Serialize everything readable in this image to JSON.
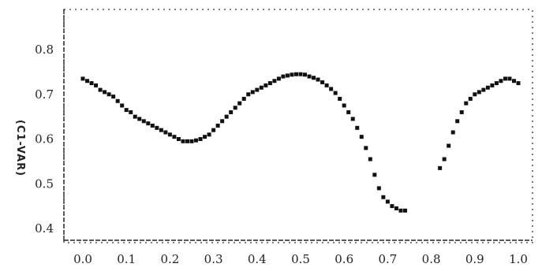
{
  "chart_data": {
    "type": "scatter",
    "title": "",
    "xlabel": "",
    "ylabel": "(C1-VAR)",
    "xlim": [
      0.0,
      1.0
    ],
    "ylim": [
      0.4,
      0.8
    ],
    "xticks": [
      "0.0",
      "0.1",
      "0.2",
      "0.3",
      "0.4",
      "0.5",
      "0.6",
      "0.7",
      "0.8",
      "0.9",
      "1.0"
    ],
    "yticks": [
      "0.4",
      "0.5",
      "0.6",
      "0.7",
      "0.8"
    ],
    "grid": false,
    "colors": {
      "points": "#111111",
      "frame": "#333333"
    },
    "series": [
      {
        "x": [
          0.0,
          0.01,
          0.02,
          0.03,
          0.04,
          0.05,
          0.06,
          0.07,
          0.08,
          0.09,
          0.1,
          0.11,
          0.12,
          0.13,
          0.14,
          0.15,
          0.16,
          0.17,
          0.18,
          0.19,
          0.2,
          0.21,
          0.22,
          0.23,
          0.24,
          0.25,
          0.26,
          0.27,
          0.28,
          0.29,
          0.3,
          0.31,
          0.32,
          0.33,
          0.34,
          0.35,
          0.36,
          0.37,
          0.38,
          0.39,
          0.4,
          0.41,
          0.42,
          0.43,
          0.44,
          0.45,
          0.46,
          0.47,
          0.48,
          0.49,
          0.5,
          0.51,
          0.52,
          0.53,
          0.54,
          0.55,
          0.56,
          0.57,
          0.58,
          0.59,
          0.6,
          0.61,
          0.62,
          0.63,
          0.64,
          0.65,
          0.66,
          0.67,
          0.68,
          0.69,
          0.7,
          0.71,
          0.72,
          0.73,
          0.74,
          0.82,
          0.83,
          0.84,
          0.85,
          0.86,
          0.87,
          0.88,
          0.89,
          0.9,
          0.91,
          0.92,
          0.93,
          0.94,
          0.95,
          0.96,
          0.97,
          0.98,
          0.99,
          1.0
        ],
        "y": [
          0.735,
          0.73,
          0.725,
          0.72,
          0.71,
          0.705,
          0.7,
          0.695,
          0.685,
          0.675,
          0.665,
          0.66,
          0.65,
          0.645,
          0.64,
          0.635,
          0.63,
          0.625,
          0.62,
          0.615,
          0.61,
          0.605,
          0.6,
          0.595,
          0.595,
          0.595,
          0.597,
          0.6,
          0.605,
          0.61,
          0.62,
          0.63,
          0.64,
          0.65,
          0.66,
          0.67,
          0.68,
          0.69,
          0.7,
          0.705,
          0.71,
          0.715,
          0.72,
          0.725,
          0.73,
          0.735,
          0.74,
          0.742,
          0.744,
          0.745,
          0.745,
          0.744,
          0.74,
          0.737,
          0.733,
          0.727,
          0.72,
          0.712,
          0.703,
          0.69,
          0.675,
          0.66,
          0.645,
          0.625,
          0.605,
          0.58,
          0.555,
          0.52,
          0.49,
          0.47,
          0.46,
          0.45,
          0.445,
          0.44,
          0.44,
          0.535,
          0.555,
          0.585,
          0.615,
          0.64,
          0.66,
          0.68,
          0.69,
          0.7,
          0.705,
          0.71,
          0.715,
          0.72,
          0.725,
          0.73,
          0.735,
          0.735,
          0.73,
          0.725
        ]
      }
    ]
  }
}
